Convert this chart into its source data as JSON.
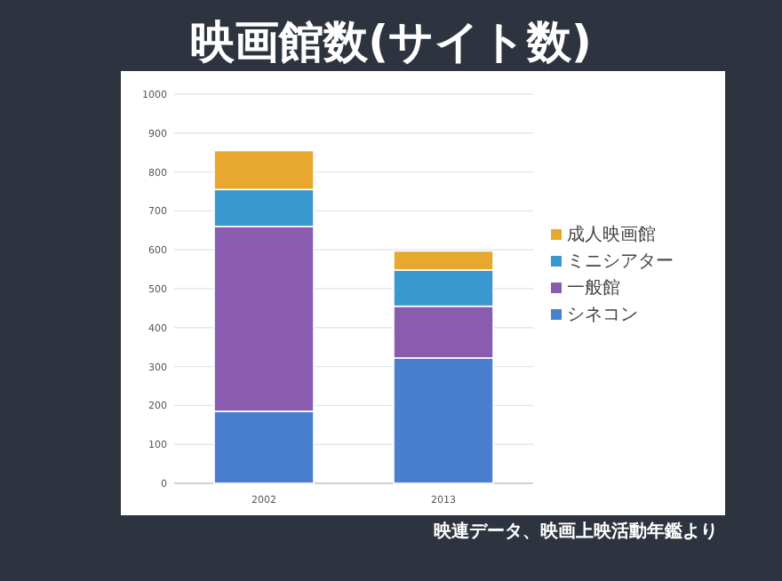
{
  "chart_data": {
    "type": "bar",
    "title": "映画館数(サイト数)",
    "stacked": true,
    "categories": [
      "2002",
      "2013"
    ],
    "series": [
      {
        "name": "シネコン",
        "color": "#4a7fd0",
        "values": [
          185,
          322
        ]
      },
      {
        "name": "一般館",
        "color": "#8a5cb0",
        "values": [
          475,
          133
        ]
      },
      {
        "name": "ミニシアター",
        "color": "#3a98d0",
        "values": [
          95,
          93
        ]
      },
      {
        "name": "成人映画館",
        "color": "#e8a830",
        "values": [
          100,
          49
        ]
      }
    ],
    "ylim": [
      0,
      1000
    ],
    "yticks": [
      0,
      100,
      200,
      300,
      400,
      500,
      600,
      700,
      800,
      900,
      1000
    ],
    "grid": "y",
    "legend": "right",
    "annotations": [
      "映連データ、映画上映活動年鑑より"
    ]
  }
}
